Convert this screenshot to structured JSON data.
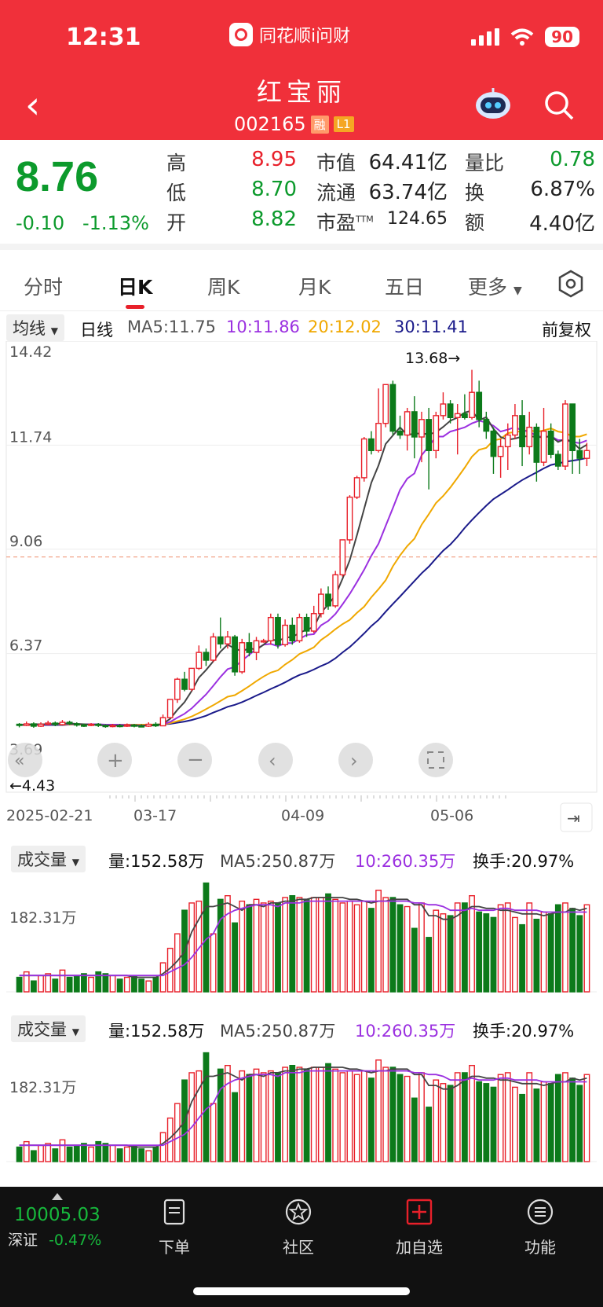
{
  "status": {
    "time": "12:31",
    "app": "同花顺i问财",
    "battery": "90"
  },
  "nav": {
    "title": "红宝丽",
    "code": "002165",
    "tag1": "融",
    "tag2": "L1"
  },
  "quote": {
    "price": "8.76",
    "change": "-0.10",
    "change_pct": "-1.13%",
    "high_label": "高",
    "high": "8.95",
    "low_label": "低",
    "low": "8.70",
    "open_label": "开",
    "open": "8.82",
    "mktcap_label": "市值",
    "mktcap": "64.41亿",
    "float_label": "流通",
    "float": "63.74亿",
    "pe_label": "市盈",
    "pe_sup": "TTM",
    "pe": "124.65",
    "volratio_label": "量比",
    "volratio": "0.78",
    "turnover_label": "换",
    "turnover": "6.87%",
    "amount_label": "额",
    "amount": "4.40亿"
  },
  "tabs": [
    "分时",
    "日K",
    "周K",
    "月K",
    "五日",
    "更多"
  ],
  "ma_bar": {
    "selector": "均线",
    "period": "日线",
    "ma5": "MA5:11.75",
    "ma10": "10:11.86",
    "ma20": "20:12.02",
    "ma30": "30:11.41",
    "adjust": "前复权"
  },
  "kline": {
    "y_labels": [
      "14.42",
      "11.74",
      "9.06",
      "6.37",
      "3.69"
    ],
    "x_labels": [
      "2025-02-21",
      "03-17",
      "04-09",
      "05-06"
    ],
    "max_note": "13.68→",
    "min_note": "←4.43"
  },
  "volume_panels": [
    {
      "selector": "成交量",
      "vol": "量:152.58万",
      "ma5": "MA5:250.87万",
      "ma10": "10:260.35万",
      "turnover": "换手:20.97%",
      "y_label": "182.31万"
    },
    {
      "selector": "成交量",
      "vol": "量:152.58万",
      "ma5": "MA5:250.87万",
      "ma10": "10:260.35万",
      "turnover": "换手:20.97%",
      "y_label": "182.31万"
    }
  ],
  "bottom": {
    "index_value": "10005.03",
    "index_name": "深证",
    "index_change": "-0.47%",
    "items": [
      "下单",
      "社区",
      "加自选",
      "功能"
    ]
  },
  "colors": {
    "up": "#e8202a",
    "down": "#0c7a1a",
    "ma5": "#444444",
    "ma10": "#9b30e0",
    "ma20": "#f0a800",
    "ma30": "#1a1a8a"
  },
  "chart_data": {
    "type": "candlestick",
    "title": "",
    "candles": [
      [
        4.55,
        4.52,
        4.58,
        4.47
      ],
      [
        4.52,
        4.56,
        4.62,
        4.5
      ],
      [
        4.56,
        4.5,
        4.6,
        4.46
      ],
      [
        4.5,
        4.55,
        4.6,
        4.48
      ],
      [
        4.55,
        4.58,
        4.64,
        4.52
      ],
      [
        4.58,
        4.54,
        4.62,
        4.5
      ],
      [
        4.54,
        4.6,
        4.66,
        4.52
      ],
      [
        4.6,
        4.56,
        4.64,
        4.53
      ],
      [
        4.56,
        4.53,
        4.6,
        4.49
      ],
      [
        4.53,
        4.52,
        4.57,
        4.48
      ],
      [
        4.52,
        4.55,
        4.58,
        4.5
      ],
      [
        4.55,
        4.52,
        4.58,
        4.48
      ],
      [
        4.52,
        4.5,
        4.55,
        4.46
      ],
      [
        4.5,
        4.52,
        4.56,
        4.47
      ],
      [
        4.52,
        4.5,
        4.56,
        4.47
      ],
      [
        4.5,
        4.53,
        4.57,
        4.48
      ],
      [
        4.53,
        4.51,
        4.56,
        4.47
      ],
      [
        4.51,
        4.5,
        4.55,
        4.47
      ],
      [
        4.5,
        4.55,
        4.6,
        4.48
      ],
      [
        4.55,
        4.51,
        4.6,
        4.48
      ],
      [
        4.51,
        4.72,
        4.8,
        4.5
      ],
      [
        4.72,
        5.19,
        5.19,
        4.7
      ],
      [
        5.19,
        5.71,
        5.75,
        5.1
      ],
      [
        5.71,
        5.45,
        5.9,
        5.4
      ],
      [
        5.45,
        5.99,
        6.0,
        5.4
      ],
      [
        5.99,
        6.4,
        6.58,
        5.95
      ],
      [
        6.4,
        6.2,
        6.5,
        6.05
      ],
      [
        6.2,
        6.8,
        6.9,
        6.15
      ],
      [
        6.8,
        6.62,
        7.3,
        6.5
      ],
      [
        6.62,
        6.8,
        6.95,
        6.5
      ],
      [
        6.8,
        5.9,
        6.85,
        5.8
      ],
      [
        5.9,
        6.65,
        6.75,
        5.85
      ],
      [
        6.65,
        6.4,
        6.9,
        6.3
      ],
      [
        6.4,
        6.7,
        6.8,
        6.2
      ],
      [
        6.7,
        6.7,
        6.75,
        6.65
      ],
      [
        6.7,
        7.3,
        7.4,
        6.6
      ],
      [
        7.3,
        6.6,
        7.4,
        6.5
      ],
      [
        6.6,
        7.1,
        7.25,
        6.55
      ],
      [
        7.1,
        6.7,
        7.3,
        6.6
      ],
      [
        6.7,
        7.3,
        7.4,
        6.65
      ],
      [
        7.3,
        6.95,
        7.4,
        6.8
      ],
      [
        6.95,
        7.4,
        7.6,
        6.9
      ],
      [
        7.4,
        7.9,
        8.05,
        7.3
      ],
      [
        7.9,
        7.6,
        8.1,
        7.5
      ],
      [
        7.6,
        8.4,
        8.5,
        7.55
      ],
      [
        8.4,
        9.3,
        9.3,
        8.35
      ],
      [
        9.3,
        10.4,
        10.45,
        9.2
      ],
      [
        10.4,
        10.9,
        10.95,
        10.35
      ],
      [
        10.9,
        11.9,
        11.95,
        10.8
      ],
      [
        11.9,
        11.6,
        12.1,
        11.5
      ],
      [
        11.6,
        12.3,
        13.2,
        11.55
      ],
      [
        12.3,
        13.3,
        13.3,
        12.2
      ],
      [
        13.3,
        12.1,
        13.4,
        12.0
      ],
      [
        12.1,
        12.0,
        12.5,
        11.9
      ],
      [
        12.0,
        12.6,
        12.7,
        11.6
      ],
      [
        12.6,
        11.95,
        13.0,
        11.4
      ],
      [
        11.95,
        12.4,
        12.6,
        11.3
      ],
      [
        12.4,
        11.6,
        12.7,
        10.6
      ],
      [
        11.6,
        12.5,
        12.6,
        11.4
      ],
      [
        12.5,
        12.8,
        13.1,
        12.4
      ],
      [
        12.8,
        12.45,
        12.9,
        12.3
      ],
      [
        12.45,
        12.55,
        12.8,
        11.5
      ],
      [
        12.55,
        12.45,
        13.05,
        12.4
      ],
      [
        12.45,
        13.1,
        13.68,
        12.4
      ],
      [
        13.1,
        12.4,
        13.4,
        12.2
      ],
      [
        12.4,
        12.1,
        12.6,
        11.9
      ],
      [
        12.1,
        11.45,
        12.2,
        11.0
      ],
      [
        11.45,
        11.7,
        11.9,
        10.9
      ],
      [
        11.7,
        12.0,
        12.3,
        11.1
      ],
      [
        12.0,
        12.5,
        12.8,
        11.9
      ],
      [
        12.5,
        11.7,
        12.9,
        11.2
      ],
      [
        11.7,
        12.2,
        12.6,
        11.5
      ],
      [
        12.2,
        11.3,
        12.3,
        10.8
      ],
      [
        11.3,
        12.1,
        12.7,
        11.2
      ],
      [
        12.1,
        11.5,
        12.3,
        11.4
      ],
      [
        11.5,
        11.2,
        11.6,
        11.1
      ],
      [
        11.2,
        12.8,
        12.9,
        11.1
      ],
      [
        12.8,
        11.6,
        12.8,
        11.0
      ],
      [
        11.6,
        11.4,
        11.9,
        11.0
      ],
      [
        11.4,
        11.6,
        11.8,
        11.2
      ]
    ],
    "ma5": [
      4.53,
      4.54,
      4.55,
      4.55,
      4.55,
      4.56,
      4.57,
      4.57,
      4.56,
      4.55,
      4.54,
      4.53,
      4.52,
      4.52,
      4.51,
      4.51,
      4.51,
      4.51,
      4.52,
      4.52,
      4.56,
      4.69,
      4.92,
      5.12,
      5.41,
      5.75,
      5.95,
      6.17,
      6.42,
      6.6,
      6.5,
      6.43,
      6.51,
      6.47,
      6.6,
      6.75,
      6.69,
      6.78,
      6.8,
      6.9,
      6.99,
      7.05,
      7.43,
      7.63,
      7.87,
      8.3,
      8.78,
      9.42,
      10.1,
      10.77,
      11.22,
      11.77,
      11.99,
      12.2,
      12.0,
      12.04,
      12.04,
      12.02,
      12.07,
      12.21,
      12.37,
      12.45,
      12.58,
      12.63,
      12.38,
      12.46,
      12.16,
      11.95,
      11.88,
      11.91,
      11.96,
      11.97,
      11.95,
      11.94,
      11.97,
      11.82,
      11.9,
      11.82,
      11.64,
      11.75
    ],
    "ma10": [
      4.53,
      4.54,
      4.54,
      4.54,
      4.54,
      4.54,
      4.55,
      4.55,
      4.55,
      4.55,
      4.55,
      4.55,
      4.54,
      4.54,
      4.54,
      4.53,
      4.53,
      4.52,
      4.52,
      4.52,
      4.55,
      4.61,
      4.72,
      4.82,
      4.96,
      5.14,
      5.32,
      5.54,
      5.77,
      5.97,
      6.03,
      6.19,
      6.34,
      6.49,
      6.6,
      6.62,
      6.56,
      6.64,
      6.64,
      6.75,
      6.85,
      6.87,
      7.1,
      7.21,
      7.39,
      7.64,
      7.91,
      8.21,
      8.53,
      8.89,
      9.2,
      9.66,
      10.12,
      10.59,
      10.88,
      11.01,
      11.48,
      11.71,
      11.96,
      11.96,
      12.09,
      12.14,
      12.2,
      12.3,
      12.37,
      12.32,
      12.24,
      12.09,
      12.14,
      12.2,
      12.12,
      12.09,
      11.97,
      11.95,
      11.97,
      11.87,
      11.87,
      11.82,
      11.79,
      11.86
    ],
    "ma20": [
      4.53,
      4.53,
      4.53,
      4.54,
      4.54,
      4.54,
      4.54,
      4.54,
      4.54,
      4.54,
      4.54,
      4.54,
      4.54,
      4.54,
      4.54,
      4.54,
      4.54,
      4.54,
      4.54,
      4.54,
      4.55,
      4.58,
      4.63,
      4.68,
      4.75,
      4.84,
      4.94,
      5.04,
      5.15,
      5.26,
      5.3,
      5.41,
      5.53,
      5.66,
      5.78,
      5.88,
      5.94,
      6.09,
      6.21,
      6.36,
      6.44,
      6.53,
      6.72,
      6.85,
      7.0,
      7.13,
      7.24,
      7.42,
      7.58,
      7.82,
      8.03,
      8.26,
      8.62,
      8.9,
      9.14,
      9.33,
      9.69,
      9.96,
      10.25,
      10.43,
      10.65,
      10.9,
      11.16,
      11.44,
      11.62,
      11.67,
      11.86,
      11.9,
      12.05,
      12.08,
      12.1,
      12.13,
      12.08,
      12.12,
      12.17,
      12.09,
      12.06,
      11.96,
      11.96,
      12.02
    ],
    "ma30": [
      4.53,
      4.53,
      4.53,
      4.53,
      4.53,
      4.53,
      4.53,
      4.54,
      4.54,
      4.54,
      4.54,
      4.54,
      4.54,
      4.54,
      4.54,
      4.54,
      4.54,
      4.54,
      4.54,
      4.54,
      4.55,
      4.56,
      4.59,
      4.62,
      4.66,
      4.71,
      4.77,
      4.85,
      4.92,
      5.0,
      5.05,
      5.12,
      5.2,
      5.29,
      5.37,
      5.46,
      5.54,
      5.63,
      5.73,
      5.82,
      5.88,
      5.96,
      6.05,
      6.13,
      6.25,
      6.4,
      6.54,
      6.71,
      6.89,
      7.08,
      7.24,
      7.45,
      7.65,
      7.84,
      8.04,
      8.24,
      8.44,
      8.61,
      8.82,
      9.02,
      9.18,
      9.38,
      9.61,
      9.81,
      10.0,
      10.18,
      10.35,
      10.47,
      10.59,
      10.72,
      10.84,
      10.94,
      11.04,
      11.14,
      11.23,
      11.27,
      11.31,
      11.34,
      11.37,
      11.41
    ],
    "volume": [
      0.8,
      1.1,
      0.6,
      0.9,
      1.0,
      0.7,
      1.2,
      0.8,
      0.9,
      1.0,
      0.8,
      1.1,
      1.0,
      0.9,
      0.7,
      0.8,
      0.9,
      0.7,
      0.6,
      0.8,
      1.6,
      2.4,
      3.2,
      4.5,
      4.9,
      5.0,
      6.0,
      3.2,
      5.1,
      5.3,
      3.8,
      5.0,
      4.8,
      5.1,
      4.9,
      5.0,
      4.9,
      5.2,
      5.3,
      5.2,
      5.1,
      5.2,
      5.2,
      5.4,
      5.1,
      4.9,
      5.0,
      4.8,
      5.0,
      4.6,
      5.6,
      5.2,
      5.2,
      4.8,
      4.7,
      3.5,
      4.9,
      3.0,
      4.5,
      4.3,
      4.2,
      4.9,
      4.9,
      5.3,
      4.4,
      4.3,
      4.1,
      4.8,
      4.9,
      4.1,
      3.7,
      4.9,
      4.0,
      4.4,
      4.3,
      4.8,
      4.9,
      4.6,
      4.2,
      4.8
    ],
    "vol_ma5": [
      0.9,
      0.9,
      0.9,
      0.9,
      0.9,
      0.9,
      0.9,
      0.9,
      0.9,
      0.9,
      0.9,
      0.9,
      0.9,
      0.9,
      0.9,
      0.9,
      0.8,
      0.8,
      0.8,
      0.8,
      1.0,
      1.3,
      1.7,
      2.2,
      3.3,
      4.0,
      4.7,
      4.7,
      4.8,
      4.9,
      4.7,
      4.5,
      4.8,
      4.8,
      4.7,
      4.9,
      4.9,
      5.0,
      5.0,
      5.1,
      5.1,
      5.2,
      5.2,
      5.2,
      5.2,
      5.2,
      5.1,
      5.1,
      5.0,
      4.9,
      5.0,
      5.0,
      5.1,
      5.1,
      5.1,
      4.8,
      4.8,
      4.2,
      4.2,
      4.0,
      4.0,
      4.2,
      4.5,
      4.7,
      4.7,
      4.6,
      4.6,
      4.5,
      4.5,
      4.4,
      4.3,
      4.3,
      4.3,
      4.2,
      4.3,
      4.4,
      4.4,
      4.6,
      4.5,
      4.6
    ],
    "vol_ma10": [
      0.9,
      0.9,
      0.9,
      0.9,
      0.9,
      0.9,
      0.9,
      0.9,
      0.9,
      0.9,
      0.9,
      0.9,
      0.9,
      0.9,
      0.9,
      0.9,
      0.9,
      0.9,
      0.9,
      0.9,
      0.9,
      1.1,
      1.3,
      1.5,
      1.9,
      2.4,
      2.9,
      3.2,
      4.0,
      4.3,
      4.5,
      4.6,
      4.7,
      4.8,
      4.8,
      4.8,
      4.7,
      4.9,
      4.9,
      4.9,
      5.0,
      5.0,
      5.0,
      5.0,
      5.0,
      5.0,
      5.0,
      5.0,
      5.0,
      5.0,
      5.0,
      5.0,
      5.0,
      5.0,
      5.0,
      4.9,
      4.9,
      4.8,
      4.8,
      4.7,
      4.5,
      4.5,
      4.5,
      4.6,
      4.5,
      4.5,
      4.5,
      4.6,
      4.6,
      4.5,
      4.5,
      4.5,
      4.5,
      4.4,
      4.4,
      4.4,
      4.4,
      4.4,
      4.4,
      4.4
    ],
    "ylim": [
      3.69,
      14.42
    ]
  }
}
